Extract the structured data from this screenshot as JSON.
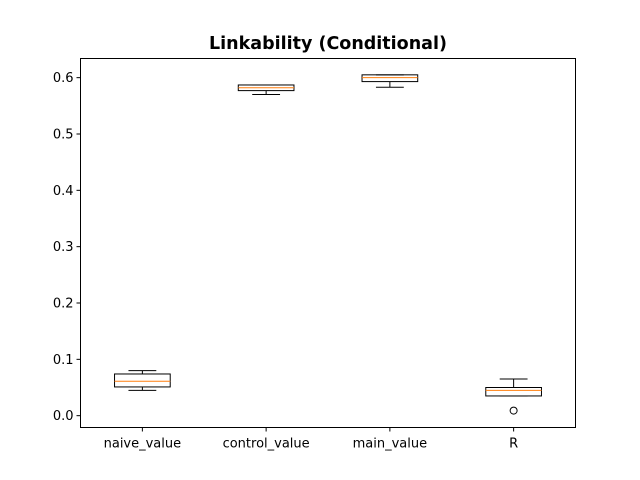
{
  "chart_data": {
    "type": "boxplot",
    "title": "Linkability (Conditional)",
    "xlabel": "",
    "ylabel": "",
    "ylim": [
      -0.021,
      0.634
    ],
    "yticks": [
      0.0,
      0.1,
      0.2,
      0.3,
      0.4,
      0.5,
      0.6
    ],
    "ytick_labels": [
      "0.0",
      "0.1",
      "0.2",
      "0.3",
      "0.4",
      "0.5",
      "0.6"
    ],
    "categories": [
      "naive_value",
      "control_value",
      "main_value",
      "R"
    ],
    "boxes": [
      {
        "label": "naive_value",
        "whislo": 0.045,
        "q1": 0.051,
        "med": 0.061,
        "q3": 0.074,
        "whishi": 0.08,
        "fliers": []
      },
      {
        "label": "control_value",
        "whislo": 0.57,
        "q1": 0.577,
        "med": 0.582,
        "q3": 0.587,
        "whishi": 0.587,
        "fliers": []
      },
      {
        "label": "main_value",
        "whislo": 0.583,
        "q1": 0.593,
        "med": 0.6,
        "q3": 0.605,
        "whishi": 0.605,
        "fliers": []
      },
      {
        "label": "R",
        "whislo": 0.035,
        "q1": 0.035,
        "med": 0.045,
        "q3": 0.05,
        "whishi": 0.065,
        "fliers": [
          0.009
        ]
      }
    ],
    "grid": false,
    "legend": "none",
    "colors": {
      "box": "#000000",
      "median": "#ff7f0e",
      "background": "#ffffff"
    }
  }
}
